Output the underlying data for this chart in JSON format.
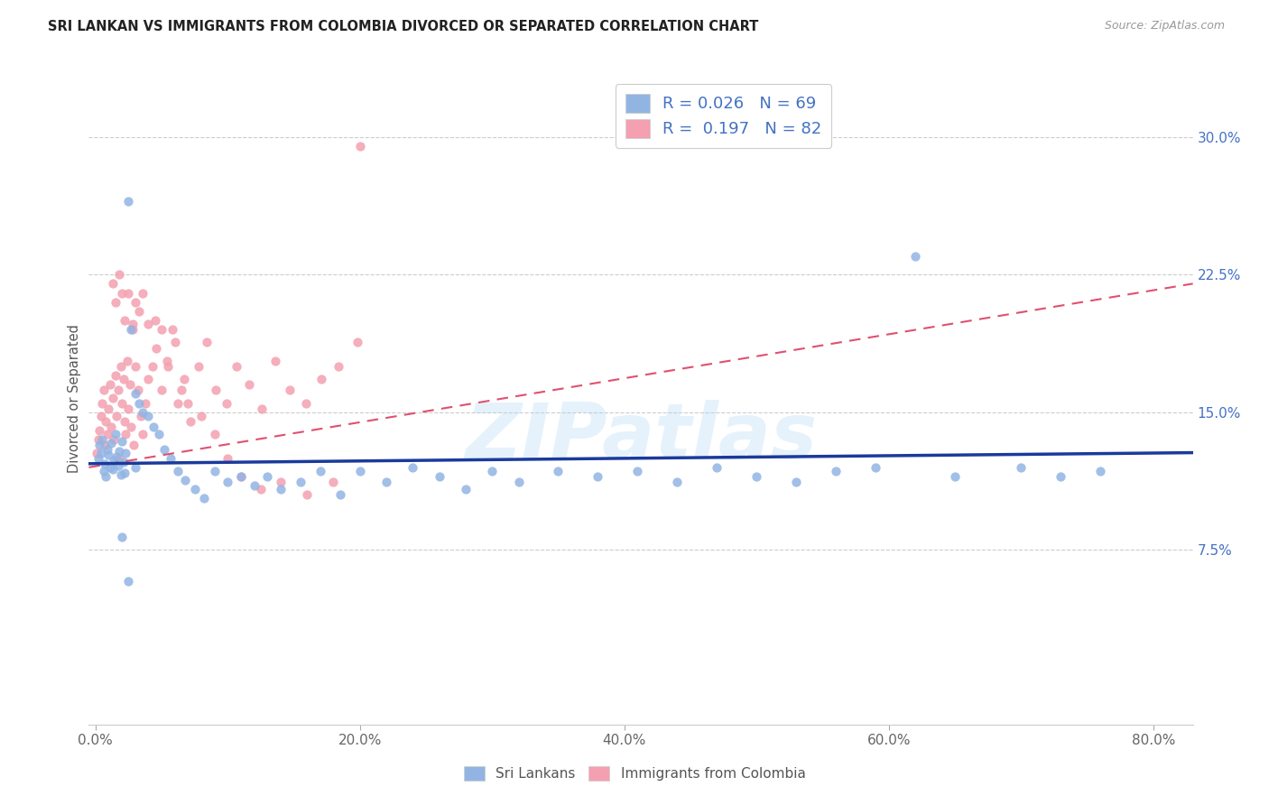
{
  "title": "SRI LANKAN VS IMMIGRANTS FROM COLOMBIA DIVORCED OR SEPARATED CORRELATION CHART",
  "source": "Source: ZipAtlas.com",
  "xlabel_ticks": [
    "0.0%",
    "20.0%",
    "40.0%",
    "60.0%",
    "80.0%"
  ],
  "xlabel_tick_vals": [
    0.0,
    0.2,
    0.4,
    0.6,
    0.8
  ],
  "ylabel_ticks": [
    "7.5%",
    "15.0%",
    "22.5%",
    "30.0%"
  ],
  "ylabel_tick_vals": [
    0.075,
    0.15,
    0.225,
    0.3
  ],
  "xlim": [
    -0.005,
    0.83
  ],
  "ylim": [
    -0.02,
    0.335
  ],
  "series1_color": "#92b4e3",
  "series2_color": "#f4a0b0",
  "series1_line_color": "#1a3a9c",
  "series2_line_color": "#e05070",
  "watermark": "ZIPatlas",
  "sri_lankans_x": [
    0.002,
    0.003,
    0.004,
    0.005,
    0.006,
    0.007,
    0.008,
    0.009,
    0.01,
    0.011,
    0.012,
    0.013,
    0.014,
    0.015,
    0.016,
    0.017,
    0.018,
    0.019,
    0.02,
    0.021,
    0.022,
    0.023,
    0.025,
    0.027,
    0.03,
    0.033,
    0.036,
    0.04,
    0.044,
    0.048,
    0.052,
    0.057,
    0.062,
    0.068,
    0.075,
    0.082,
    0.09,
    0.1,
    0.11,
    0.12,
    0.13,
    0.14,
    0.155,
    0.17,
    0.185,
    0.2,
    0.22,
    0.24,
    0.26,
    0.28,
    0.3,
    0.32,
    0.35,
    0.38,
    0.41,
    0.44,
    0.47,
    0.5,
    0.53,
    0.56,
    0.59,
    0.62,
    0.65,
    0.7,
    0.73,
    0.76,
    0.02,
    0.025,
    0.03
  ],
  "sri_lankans_y": [
    0.125,
    0.132,
    0.128,
    0.135,
    0.118,
    0.122,
    0.115,
    0.13,
    0.127,
    0.12,
    0.133,
    0.119,
    0.124,
    0.138,
    0.126,
    0.121,
    0.129,
    0.116,
    0.134,
    0.123,
    0.117,
    0.128,
    0.265,
    0.195,
    0.16,
    0.155,
    0.15,
    0.148,
    0.142,
    0.138,
    0.13,
    0.125,
    0.118,
    0.113,
    0.108,
    0.103,
    0.118,
    0.112,
    0.115,
    0.11,
    0.115,
    0.108,
    0.112,
    0.118,
    0.105,
    0.118,
    0.112,
    0.12,
    0.115,
    0.108,
    0.118,
    0.112,
    0.118,
    0.115,
    0.118,
    0.112,
    0.12,
    0.115,
    0.112,
    0.118,
    0.12,
    0.235,
    0.115,
    0.12,
    0.115,
    0.118,
    0.082,
    0.058,
    0.12
  ],
  "colombia_x": [
    0.001,
    0.002,
    0.003,
    0.004,
    0.005,
    0.006,
    0.007,
    0.008,
    0.009,
    0.01,
    0.011,
    0.012,
    0.013,
    0.014,
    0.015,
    0.016,
    0.017,
    0.018,
    0.019,
    0.02,
    0.021,
    0.022,
    0.023,
    0.024,
    0.025,
    0.026,
    0.027,
    0.028,
    0.029,
    0.03,
    0.032,
    0.034,
    0.036,
    0.038,
    0.04,
    0.043,
    0.046,
    0.05,
    0.054,
    0.058,
    0.062,
    0.067,
    0.072,
    0.078,
    0.084,
    0.091,
    0.099,
    0.107,
    0.116,
    0.126,
    0.136,
    0.147,
    0.159,
    0.171,
    0.184,
    0.198,
    0.013,
    0.015,
    0.018,
    0.02,
    0.022,
    0.025,
    0.028,
    0.03,
    0.033,
    0.036,
    0.04,
    0.045,
    0.05,
    0.055,
    0.06,
    0.065,
    0.07,
    0.08,
    0.09,
    0.1,
    0.11,
    0.125,
    0.14,
    0.16,
    0.18,
    0.2
  ],
  "colombia_y": [
    0.128,
    0.135,
    0.14,
    0.148,
    0.155,
    0.162,
    0.132,
    0.145,
    0.138,
    0.152,
    0.165,
    0.142,
    0.158,
    0.135,
    0.17,
    0.148,
    0.162,
    0.125,
    0.175,
    0.155,
    0.168,
    0.145,
    0.138,
    0.178,
    0.152,
    0.165,
    0.142,
    0.195,
    0.132,
    0.175,
    0.162,
    0.148,
    0.138,
    0.155,
    0.168,
    0.175,
    0.185,
    0.162,
    0.178,
    0.195,
    0.155,
    0.168,
    0.145,
    0.175,
    0.188,
    0.162,
    0.155,
    0.175,
    0.165,
    0.152,
    0.178,
    0.162,
    0.155,
    0.168,
    0.175,
    0.188,
    0.22,
    0.21,
    0.225,
    0.215,
    0.2,
    0.215,
    0.198,
    0.21,
    0.205,
    0.215,
    0.198,
    0.2,
    0.195,
    0.175,
    0.188,
    0.162,
    0.155,
    0.148,
    0.138,
    0.125,
    0.115,
    0.108,
    0.112,
    0.105,
    0.112,
    0.295
  ]
}
